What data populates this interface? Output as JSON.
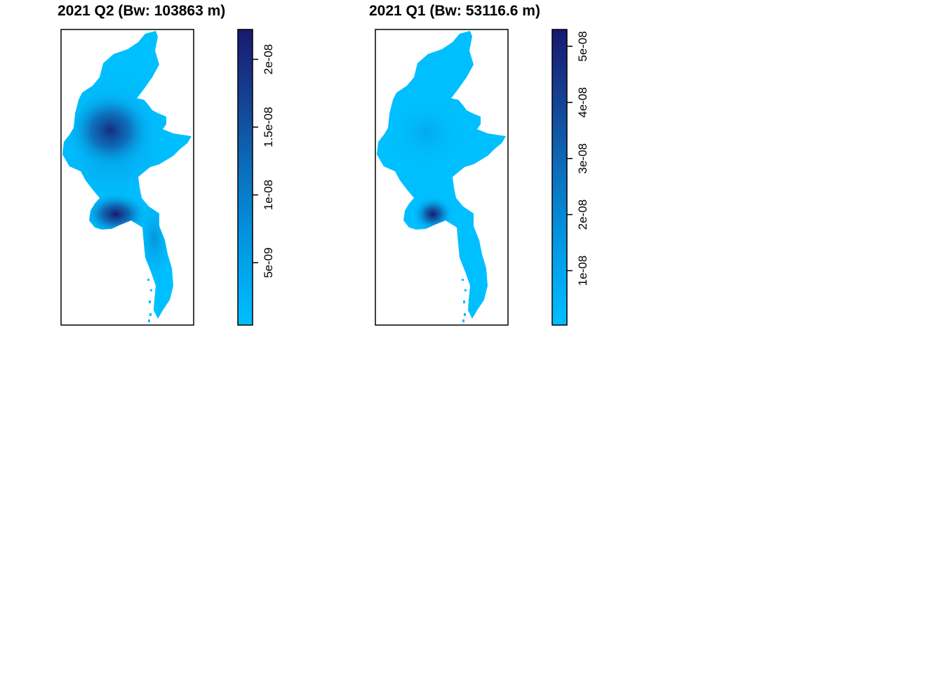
{
  "panels": [
    {
      "title": "2021 Q2 (Bw: 103863 m)",
      "legend": {
        "min": 4e-10,
        "max": 2.22e-08,
        "ticks": [
          {
            "value": 5e-09,
            "label": "5e-09"
          },
          {
            "value": 1e-08,
            "label": "1e-08"
          },
          {
            "value": 1.5e-08,
            "label": "1.5e-08"
          },
          {
            "value": 2e-08,
            "label": "2e-08"
          }
        ]
      },
      "hotspots": [
        {
          "name": "central-dry-zone",
          "lon": 95.4,
          "lat": 21.6,
          "strength": 0.78
        },
        {
          "name": "irrawaddy-delta",
          "lon": 95.5,
          "lat": 17.0,
          "strength": 1.0
        }
      ]
    },
    {
      "title": "2021 Q1 (Bw: 53116.6 m)",
      "legend": {
        "min": 3e-10,
        "max": 5.3e-08,
        "ticks": [
          {
            "value": 1e-08,
            "label": "1e-08"
          },
          {
            "value": 2e-08,
            "label": "2e-08"
          },
          {
            "value": 3e-08,
            "label": "3e-08"
          },
          {
            "value": 4e-08,
            "label": "4e-08"
          },
          {
            "value": 5e-08,
            "label": "5e-08"
          }
        ]
      },
      "hotspots": [
        {
          "name": "central-dry-zone",
          "lon": 95.4,
          "lat": 21.6,
          "strength": 0.25
        },
        {
          "name": "irrawaddy-delta",
          "lon": 95.7,
          "lat": 16.8,
          "strength": 1.0
        }
      ]
    }
  ],
  "colors": {
    "low": "#00BFFF",
    "high": "#191970",
    "frame": "#000000",
    "background": "#FFFFFF"
  }
}
